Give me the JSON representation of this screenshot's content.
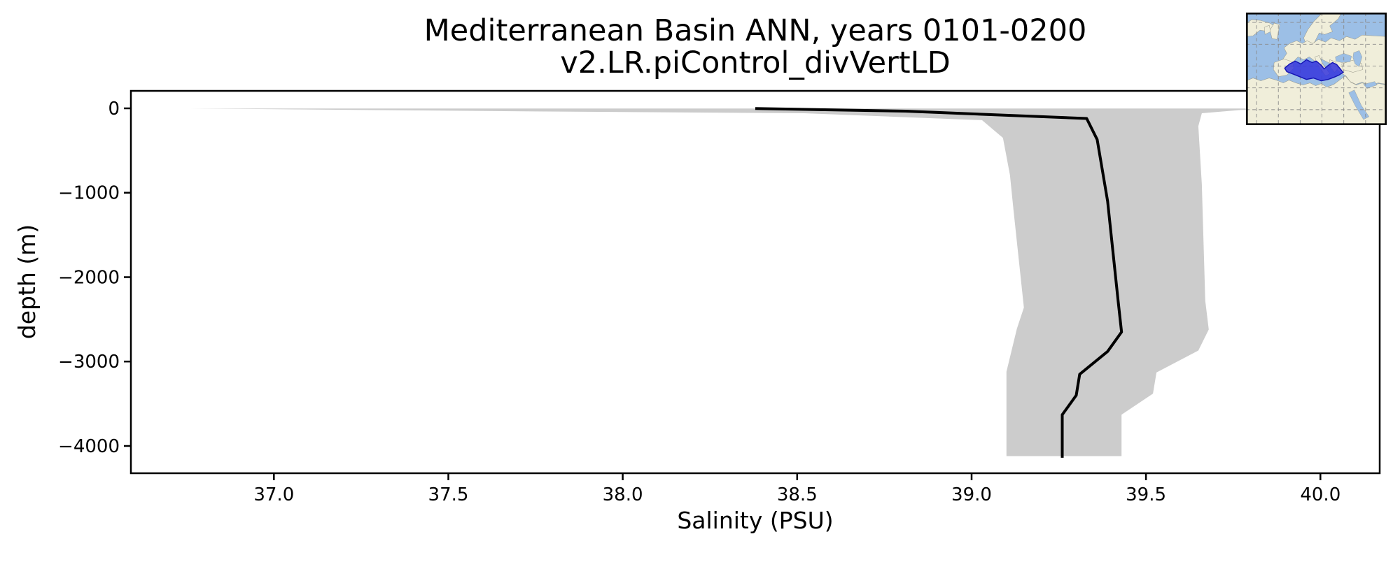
{
  "figure": {
    "kind": "matplotlib-style ocean profile figure"
  },
  "chart_data": {
    "type": "line",
    "title": "Mediterranean Basin ANN, years 0101-0200",
    "subtitle": "v2.LR.piControl_divVertLD",
    "xlabel": "Salinity (PSU)",
    "ylabel": "depth (m)",
    "xlim": [
      36.59,
      40.17
    ],
    "ylim": [
      -4323,
      207
    ],
    "grid": false,
    "legend": "none",
    "axis_color": "#000000",
    "xticks": {
      "values": [
        37.0,
        37.5,
        38.0,
        38.5,
        39.0,
        39.5,
        40.0
      ],
      "labels": [
        "37.0",
        "37.5",
        "38.0",
        "38.5",
        "39.0",
        "39.5",
        "40.0"
      ]
    },
    "yticks": {
      "values": [
        0,
        -1000,
        -2000,
        -3000,
        -4000
      ],
      "labels": [
        "0",
        "−1000",
        "−2000",
        "−3000",
        "−4000"
      ]
    },
    "units": {
      "x": "PSU",
      "y": "m"
    },
    "series": [
      {
        "name": "min-max envelope",
        "type": "band",
        "color": "#cccccc",
        "min": [
          [
            36.76,
            -2
          ],
          [
            37.78,
            -37
          ],
          [
            38.52,
            -58
          ],
          [
            39.03,
            -140
          ],
          [
            39.09,
            -350
          ],
          [
            39.11,
            -790
          ],
          [
            39.12,
            -1200
          ],
          [
            39.15,
            -2360
          ],
          [
            39.13,
            -2610
          ],
          [
            39.1,
            -3120
          ],
          [
            39.1,
            -4120
          ]
        ],
        "max": [
          [
            40.08,
            -2
          ],
          [
            39.77,
            -20
          ],
          [
            39.66,
            -58
          ],
          [
            39.65,
            -210
          ],
          [
            39.66,
            -900
          ],
          [
            39.67,
            -2280
          ],
          [
            39.68,
            -2620
          ],
          [
            39.65,
            -2870
          ],
          [
            39.53,
            -3130
          ],
          [
            39.52,
            -3380
          ],
          [
            39.43,
            -3630
          ],
          [
            39.43,
            -4120
          ]
        ]
      },
      {
        "name": "mean salinity profile",
        "type": "line",
        "color": "#000000",
        "width": 4,
        "points": [
          [
            38.38,
            -2
          ],
          [
            38.81,
            -33
          ],
          [
            39.33,
            -120
          ],
          [
            39.36,
            -370
          ],
          [
            39.39,
            -1100
          ],
          [
            39.42,
            -2280
          ],
          [
            39.43,
            -2650
          ],
          [
            39.39,
            -2880
          ],
          [
            39.31,
            -3150
          ],
          [
            39.3,
            -3400
          ],
          [
            39.26,
            -3630
          ],
          [
            39.26,
            -4140
          ]
        ]
      }
    ]
  },
  "inset_map": {
    "region": "Mediterranean Basin",
    "ocean_color": "#9cbfe6",
    "land_color": "#f0eeda",
    "highlight_color": "#3535dc",
    "highlight_border_color": "#1414b4",
    "grid_color": "#8a8a8a",
    "border_color": "#000000"
  }
}
